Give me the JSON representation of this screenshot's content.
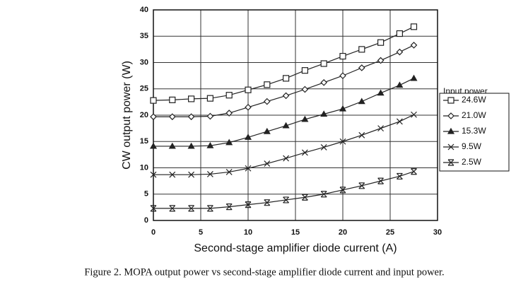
{
  "chart_data": {
    "type": "line",
    "x_label": "Second-stage amplifier diode current (A)",
    "y_label": "CW output power (W)",
    "legend_title": "Input power",
    "caption": "Figure 2. MOPA output power vs second-stage amplifier diode current and input power.",
    "xlim": [
      0,
      30
    ],
    "xticks": [
      0,
      5,
      10,
      15,
      20,
      25,
      30
    ],
    "ylim": [
      0,
      40
    ],
    "yticks": [
      0,
      5,
      10,
      15,
      20,
      25,
      30,
      35,
      40
    ],
    "grid": true,
    "legend": "right",
    "x": [
      0,
      2,
      4,
      6,
      8,
      10,
      12,
      14,
      16,
      18,
      20,
      22,
      24,
      26,
      27.5
    ],
    "series": [
      {
        "name": "24.6W",
        "color": "#222222",
        "marker": "square",
        "values": [
          22.8,
          22.9,
          23.1,
          23.2,
          23.8,
          24.8,
          25.8,
          27.0,
          28.5,
          29.8,
          31.2,
          32.5,
          33.8,
          35.5,
          36.8
        ]
      },
      {
        "name": "21.0W",
        "color": "#222222",
        "marker": "diamond",
        "values": [
          19.7,
          19.7,
          19.7,
          19.8,
          20.4,
          21.5,
          22.6,
          23.7,
          24.9,
          26.2,
          27.5,
          29.0,
          30.4,
          32.0,
          33.3
        ]
      },
      {
        "name": "15.3W",
        "color": "#222222",
        "marker": "triangle",
        "values": [
          14.1,
          14.1,
          14.1,
          14.2,
          14.8,
          15.8,
          16.9,
          18.0,
          19.2,
          20.2,
          21.2,
          22.6,
          24.2,
          25.7,
          27.0
        ]
      },
      {
        "name": "9.5W",
        "color": "#222222",
        "marker": "x",
        "values": [
          8.7,
          8.7,
          8.7,
          8.8,
          9.2,
          9.9,
          10.8,
          11.8,
          12.9,
          13.9,
          15.0,
          16.2,
          17.5,
          18.8,
          20.1
        ]
      },
      {
        "name": "2.5W",
        "color": "#222222",
        "marker": "asterisk",
        "values": [
          2.3,
          2.3,
          2.3,
          2.3,
          2.6,
          3.0,
          3.4,
          3.9,
          4.4,
          5.0,
          5.8,
          6.6,
          7.5,
          8.4,
          9.3
        ]
      }
    ]
  }
}
